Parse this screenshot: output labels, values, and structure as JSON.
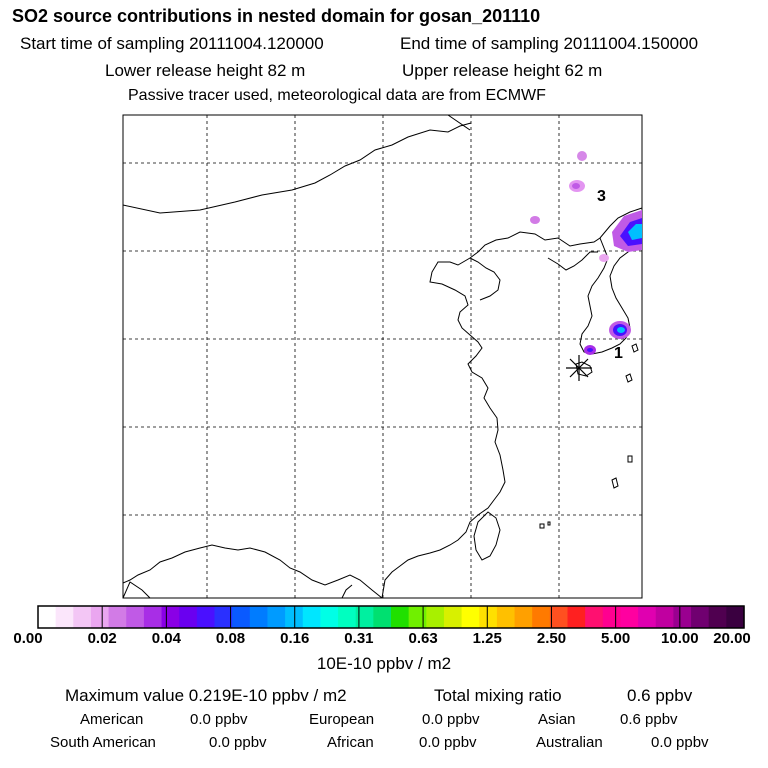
{
  "header": {
    "title": "SO2 source contributions in nested domain for gosan_201110",
    "start_label": "Start time of sampling 20111004.120000",
    "end_label": "End time of sampling 20111004.150000",
    "lower_label": "Lower release height   82 m",
    "upper_label": "Upper release height   62 m",
    "note": "Passive tracer used, meteorological data are from ECMWF"
  },
  "map": {
    "markers": [
      {
        "label": "3",
        "kind": "source-number"
      },
      {
        "label": "1",
        "kind": "source-number"
      }
    ],
    "station_symbol": "asterisk"
  },
  "colorbar": {
    "colors": [
      "#ffffff",
      "#fbe6fb",
      "#f3c6f5",
      "#eaa6f0",
      "#d27be6",
      "#c05ae6",
      "#a82ee6",
      "#8a00e6",
      "#6a00f0",
      "#4a10ff",
      "#2a30ff",
      "#0a5aff",
      "#007cff",
      "#009bff",
      "#00bfff",
      "#00e6ff",
      "#00ffe6",
      "#00ffc0",
      "#00f0a0",
      "#00e070",
      "#20e000",
      "#70f000",
      "#a8f000",
      "#d8f000",
      "#ffff00",
      "#ffe000",
      "#ffc000",
      "#ffa000",
      "#ff7a00",
      "#ff5020",
      "#ff2020",
      "#ff1070",
      "#ff0090",
      "#ff00a0",
      "#e000b0",
      "#c000a0",
      "#9a0090",
      "#700070",
      "#500050",
      "#3a0040"
    ],
    "labels": [
      "0.00",
      "0.02",
      "0.04",
      "0.08",
      "0.16",
      "0.31",
      "0.63",
      "1.25",
      "2.50",
      "5.00",
      "10.00",
      "20.00"
    ],
    "units": "10E-10 ppbv / m2"
  },
  "stats": {
    "max_label": "Maximum value  0.219E-10 ppbv / m2",
    "total_label": "Total mixing ratio",
    "total_value": "0.6 ppbv"
  },
  "regions": [
    {
      "name": "American",
      "value": "0.0 ppbv"
    },
    {
      "name": "European",
      "value": "0.0 ppbv"
    },
    {
      "name": "Asian",
      "value": "0.6 ppbv"
    },
    {
      "name": "South American",
      "value": "0.0 ppbv"
    },
    {
      "name": "African",
      "value": "0.0 ppbv"
    },
    {
      "name": "Australian",
      "value": "0.0 ppbv"
    }
  ]
}
